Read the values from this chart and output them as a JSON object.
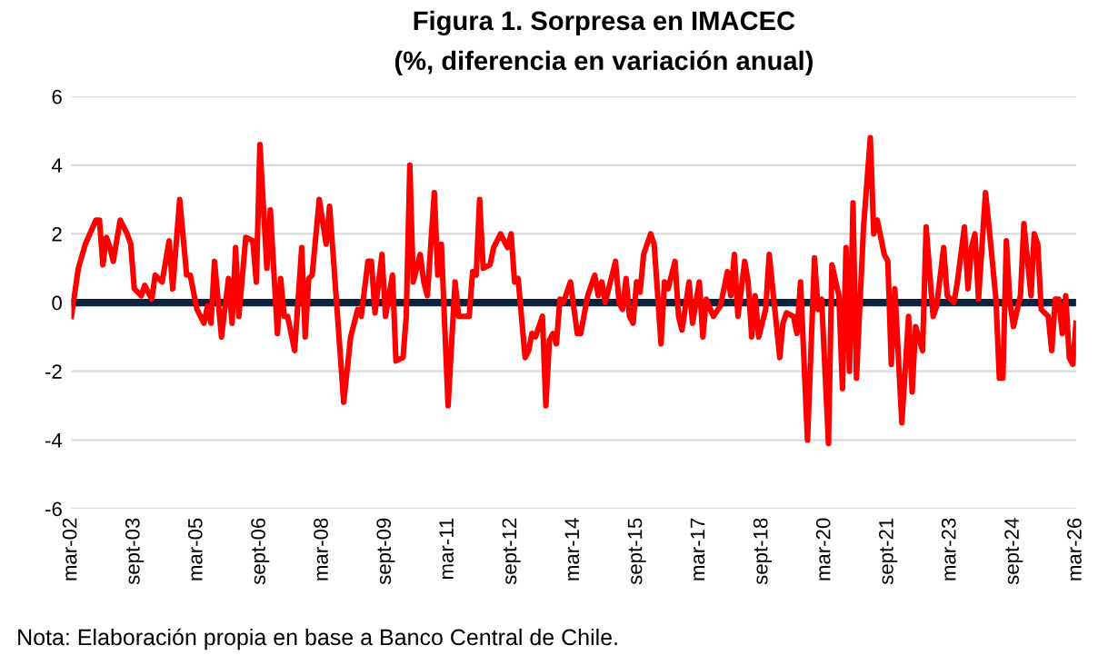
{
  "chart_data": {
    "type": "line",
    "title": "Figura 1. Sorpresa en IMACEC",
    "subtitle": "(%, diferencia en variación anual)",
    "annotations": [
      "Nota: Elaboración propia en base a Banco Central de Chile."
    ],
    "series": [
      {
        "color": "#ff0000",
        "x": [
          "2002-03",
          "2002-05",
          "2002-07",
          "2002-10",
          "2002-11",
          "2002-12",
          "2003-01",
          "2003-02",
          "2003-03",
          "2003-05",
          "2003-07",
          "2003-08",
          "2003-09",
          "2003-11",
          "2003-12",
          "2004-02",
          "2004-03",
          "2004-05",
          "2004-07",
          "2004-08",
          "2004-10",
          "2004-12",
          "2005-01",
          "2005-03",
          "2005-05",
          "2005-06",
          "2005-07",
          "2005-08",
          "2005-10",
          "2005-12",
          "2006-01",
          "2006-02",
          "2006-03",
          "2006-05",
          "2006-07",
          "2006-08",
          "2006-09",
          "2006-11",
          "2006-12",
          "2007-02",
          "2007-03",
          "2007-04",
          "2007-05",
          "2007-07",
          "2007-09",
          "2007-10",
          "2007-11",
          "2007-12",
          "2008-02",
          "2008-04",
          "2008-05",
          "2008-06",
          "2008-09",
          "2008-11",
          "2009-01",
          "2009-02",
          "2009-04",
          "2009-05",
          "2009-06",
          "2009-08",
          "2009-09",
          "2009-11",
          "2009-12",
          "2010-02",
          "2010-03",
          "2010-04",
          "2010-05",
          "2010-07",
          "2010-08",
          "2010-09",
          "2010-11",
          "2010-12",
          "2011-01",
          "2011-03",
          "2011-05",
          "2011-06",
          "2011-09",
          "2011-10",
          "2011-11",
          "2011-12",
          "2012-01",
          "2012-03",
          "2012-04",
          "2012-06",
          "2012-08",
          "2012-09",
          "2012-10",
          "2012-11",
          "2013-01",
          "2013-02",
          "2013-03",
          "2013-04",
          "2013-06",
          "2013-07",
          "2013-08",
          "2013-09",
          "2013-10",
          "2013-11",
          "2013-12",
          "2014-02",
          "2014-04",
          "2014-05",
          "2014-07",
          "2014-09",
          "2014-10",
          "2014-11",
          "2014-12",
          "2015-03",
          "2015-04",
          "2015-05",
          "2015-06",
          "2015-07",
          "2015-08",
          "2015-09",
          "2015-10",
          "2015-11",
          "2016-01",
          "2016-02",
          "2016-04",
          "2016-05",
          "2016-06",
          "2016-08",
          "2016-09",
          "2016-10",
          "2016-12",
          "2017-01",
          "2017-03",
          "2017-04",
          "2017-05",
          "2017-07",
          "2017-09",
          "2017-11",
          "2017-12",
          "2018-01",
          "2018-02",
          "2018-04",
          "2018-05",
          "2018-06",
          "2018-07",
          "2018-08",
          "2018-10",
          "2018-11",
          "2019-02",
          "2019-03",
          "2019-04",
          "2019-06",
          "2019-07",
          "2019-08",
          "2019-10",
          "2019-12",
          "2020-01",
          "2020-02",
          "2020-04",
          "2020-05",
          "2020-07",
          "2020-08",
          "2020-09",
          "2020-10",
          "2020-11",
          "2020-12",
          "2021-02",
          "2021-04",
          "2021-05",
          "2021-06",
          "2021-08",
          "2021-09",
          "2021-10",
          "2021-11",
          "2022-01",
          "2022-03",
          "2022-04",
          "2022-05",
          "2022-07",
          "2022-08",
          "2022-10",
          "2022-11",
          "2023-01",
          "2023-02",
          "2023-04",
          "2023-05",
          "2023-07",
          "2023-08",
          "2023-09",
          "2023-10",
          "2023-11",
          "2024-01",
          "2024-02",
          "2024-04",
          "2024-05",
          "2024-06",
          "2024-07",
          "2024-08",
          "2024-09",
          "2024-11",
          "2024-12",
          "2025-02",
          "2025-03",
          "2025-04",
          "2025-05",
          "2025-07",
          "2025-08",
          "2025-09",
          "2025-10",
          "2025-11",
          "2025-12",
          "2026-01",
          "2026-02",
          "2026-03"
        ],
        "values": [
          -0.4,
          1.0,
          1.7,
          2.4,
          2.4,
          1.1,
          1.9,
          1.6,
          1.2,
          2.4,
          2.0,
          1.7,
          0.4,
          0.2,
          0.5,
          0.1,
          0.8,
          0.6,
          1.8,
          0.4,
          3.0,
          0.8,
          0.8,
          -0.2,
          -0.6,
          -0.1,
          -0.6,
          1.2,
          -1.0,
          0.7,
          -0.6,
          1.6,
          -0.4,
          1.9,
          1.8,
          0.6,
          4.6,
          1.0,
          2.7,
          -0.9,
          0.7,
          -0.4,
          -0.4,
          -1.4,
          1.6,
          -1.0,
          0.7,
          0.8,
          3.0,
          1.7,
          2.8,
          1.4,
          -2.9,
          -1.0,
          -0.2,
          -0.4,
          1.2,
          1.2,
          -0.3,
          1.4,
          -0.4,
          0.8,
          -1.7,
          -1.6,
          -0.4,
          4.0,
          0.6,
          1.4,
          0.6,
          0.2,
          3.2,
          0.8,
          1.7,
          -3.0,
          0.6,
          -0.4,
          -0.4,
          0.9,
          0.8,
          3.0,
          1.0,
          1.1,
          1.6,
          2.0,
          1.6,
          2.0,
          0.6,
          0.7,
          -1.6,
          -1.4,
          -0.9,
          -1.0,
          -0.4,
          -3.0,
          -1.1,
          -0.9,
          -1.2,
          0.1,
          0.0,
          0.6,
          -0.9,
          -0.9,
          0.2,
          0.8,
          0.2,
          0.6,
          0.0,
          1.2,
          0.0,
          -0.2,
          0.7,
          -0.4,
          -0.6,
          0.6,
          0.3,
          1.4,
          2.0,
          1.7,
          -1.2,
          0.6,
          0.4,
          1.2,
          -0.4,
          -0.8,
          0.6,
          -0.6,
          0.6,
          -1.0,
          0.1,
          -0.4,
          -0.1,
          0.9,
          0.2,
          1.4,
          -0.4,
          1.2,
          0.6,
          -1.0,
          0.2,
          -1.0,
          -0.2,
          1.4,
          -1.6,
          -0.6,
          -0.3,
          -0.4,
          -0.9,
          0.6,
          -4.0,
          1.3,
          -0.2,
          0.1,
          -4.1,
          1.1,
          0.2,
          -2.5,
          1.6,
          -2.0,
          2.9,
          -2.2,
          2.2,
          4.8,
          2.0,
          2.4,
          1.4,
          1.2,
          -1.8,
          0.4,
          -3.5,
          -0.4,
          -2.6,
          -0.7,
          -1.4,
          2.2,
          -0.4,
          -0.1,
          1.6,
          0.2,
          0.0,
          0.6,
          2.2,
          0.4,
          1.6,
          2.0,
          0.1,
          3.2,
          2.2,
          0.1,
          -2.2,
          -2.2,
          1.8,
          0.0,
          -0.7,
          0.2,
          2.3,
          0.2,
          2.0,
          1.7,
          -0.2,
          -0.4,
          -1.4,
          0.1,
          0.1,
          -0.9,
          0.2,
          -1.6,
          -1.8,
          -0.6
        ]
      }
    ],
    "xlim": [
      "2002-03",
      "2026-03"
    ],
    "xticks": [
      {
        "value": "2002-03",
        "label": "mar-02"
      },
      {
        "value": "2003-09",
        "label": "sept-03"
      },
      {
        "value": "2005-03",
        "label": "mar-05"
      },
      {
        "value": "2006-09",
        "label": "sept-06"
      },
      {
        "value": "2008-03",
        "label": "mar-08"
      },
      {
        "value": "2009-09",
        "label": "sept-09"
      },
      {
        "value": "2011-03",
        "label": "mar-11"
      },
      {
        "value": "2012-09",
        "label": "sept-12"
      },
      {
        "value": "2014-03",
        "label": "mar-14"
      },
      {
        "value": "2015-09",
        "label": "sept-15"
      },
      {
        "value": "2017-03",
        "label": "mar-17"
      },
      {
        "value": "2018-09",
        "label": "sept-18"
      },
      {
        "value": "2020-03",
        "label": "mar-20"
      },
      {
        "value": "2021-09",
        "label": "sept-21"
      },
      {
        "value": "2023-03",
        "label": "mar-23"
      },
      {
        "value": "2024-09",
        "label": "sept-24"
      },
      {
        "value": "2026-03",
        "label": "mar-26"
      }
    ],
    "ylim": [
      -6,
      6
    ],
    "yticks": [
      -6,
      -4,
      -2,
      0,
      2,
      4,
      6
    ],
    "grid": "y",
    "ref_lines": [
      {
        "axis": "y",
        "value": 0,
        "color": "#0c2340"
      }
    ],
    "legend": false
  }
}
